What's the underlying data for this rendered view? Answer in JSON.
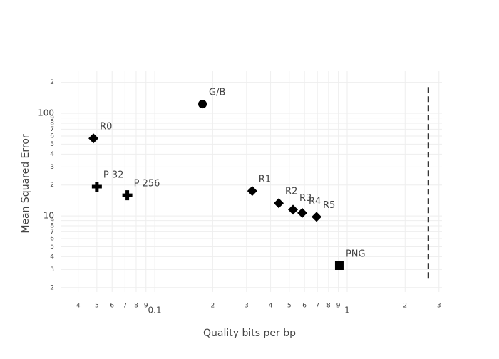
{
  "chart_data": {
    "type": "scatter",
    "x_label": "Quality bits per bp",
    "y_label": "Mean Squared Error",
    "x_log": true,
    "y_log": true,
    "grid": true,
    "color": "#000000",
    "xlim": [
      0.0324,
      3.11
    ],
    "ylim": [
      1.81,
      257
    ],
    "xticks": [
      {
        "value": 0.04,
        "label": "4"
      },
      {
        "value": 0.05,
        "label": "5"
      },
      {
        "value": 0.06,
        "label": "6"
      },
      {
        "value": 0.07,
        "label": "7"
      },
      {
        "value": 0.08,
        "label": "8"
      },
      {
        "value": 0.09,
        "label": "9"
      },
      0.1,
      {
        "value": 0.2,
        "label": "2"
      },
      {
        "value": 0.3,
        "label": "3"
      },
      {
        "value": 0.4,
        "label": "4"
      },
      {
        "value": 0.5,
        "label": "5"
      },
      {
        "value": 0.6,
        "label": "6"
      },
      {
        "value": 0.7,
        "label": "7"
      },
      {
        "value": 0.8,
        "label": "8"
      },
      {
        "value": 0.9,
        "label": "9"
      },
      1,
      2,
      3
    ],
    "yticks": [
      2,
      3,
      4,
      5,
      6,
      7,
      8,
      9,
      10,
      {
        "value": 20,
        "label": "2"
      },
      {
        "value": 30,
        "label": "3"
      },
      {
        "value": 40,
        "label": "4"
      },
      {
        "value": 50,
        "label": "5"
      },
      {
        "value": 60,
        "label": "6"
      },
      {
        "value": 70,
        "label": "7"
      },
      {
        "value": 80,
        "label": "8"
      },
      {
        "value": 90,
        "label": "9"
      },
      100,
      {
        "value": 200,
        "label": "2"
      }
    ],
    "series": [
      {
        "name": "G/B",
        "symbol": "circle",
        "x": [
          0.177
        ],
        "values": [
          123
        ]
      },
      {
        "name": "R0",
        "symbol": "diamond",
        "x": [
          0.048
        ],
        "values": [
          57
        ]
      },
      {
        "name": "P 32",
        "symbol": "cross",
        "x": [
          0.05
        ],
        "values": [
          19.3
        ]
      },
      {
        "name": "P 256",
        "symbol": "cross",
        "x": [
          0.072
        ],
        "values": [
          15.9
        ]
      },
      {
        "name": "R1",
        "symbol": "diamond",
        "x": [
          0.321
        ],
        "values": [
          17.5
        ]
      },
      {
        "name": "R2",
        "symbol": "diamond",
        "x": [
          0.441
        ],
        "values": [
          13.3
        ]
      },
      {
        "name": "R3",
        "symbol": "diamond",
        "x": [
          0.523
        ],
        "values": [
          11.5
        ]
      },
      {
        "name": "R4",
        "symbol": "diamond",
        "x": [
          0.584
        ],
        "values": [
          10.7
        ]
      },
      {
        "name": "R5",
        "symbol": "diamond",
        "x": [
          0.693
        ],
        "values": [
          9.8
        ]
      },
      {
        "name": "PNG",
        "symbol": "square",
        "x": [
          0.91
        ],
        "values": [
          3.27
        ]
      }
    ],
    "vline": {
      "x": 2.64,
      "ymin": 2.3,
      "ymax": 180
    }
  }
}
